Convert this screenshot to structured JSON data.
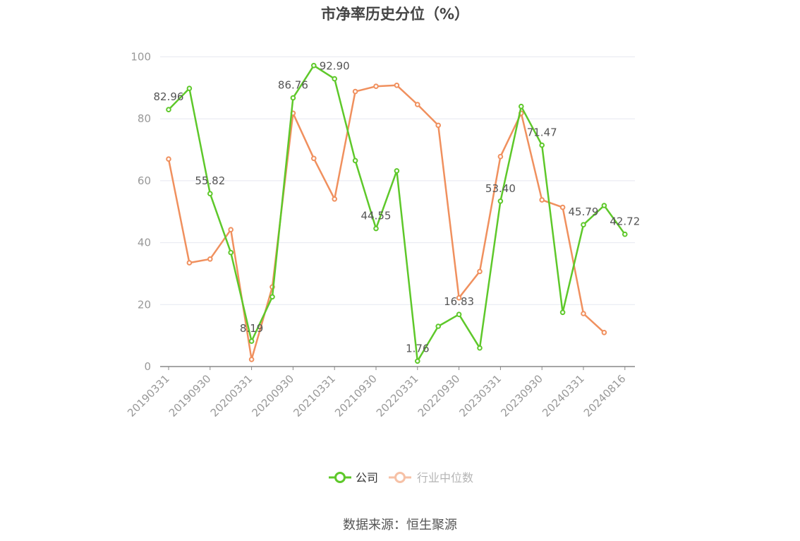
{
  "title": "市净率历史分位（%）",
  "source": "数据来源：恒生聚源",
  "colors": {
    "company": "#5ec82a",
    "industry": "#f0905e",
    "grid": "#e6e8f0",
    "axis": "#999999",
    "label": "#555555"
  },
  "chart_data": {
    "type": "line",
    "title": "市净率历史分位（%）",
    "xlabel": "",
    "ylabel": "",
    "ylim": [
      0,
      100
    ],
    "yticks": [
      0,
      20,
      40,
      60,
      80,
      100
    ],
    "grid": true,
    "legend_position": "bottom",
    "x": [
      "20190331",
      "20190630",
      "20190930",
      "20191231",
      "20200331",
      "20200630",
      "20200930",
      "20201231",
      "20210331",
      "20210630",
      "20210930",
      "20211231",
      "20220331",
      "20220630",
      "20220930",
      "20221231",
      "20230331",
      "20230630",
      "20230930",
      "20231231",
      "20240331",
      "20240630",
      "20240816"
    ],
    "xtick_labels": [
      "20190331",
      "20190930",
      "20200331",
      "20200930",
      "20210331",
      "20210930",
      "20220331",
      "20220930",
      "20230331",
      "20230930",
      "20240331",
      "20240816"
    ],
    "xtick_index": [
      0,
      2,
      4,
      6,
      8,
      10,
      12,
      14,
      16,
      18,
      20,
      22
    ],
    "series": [
      {
        "name": "公司",
        "color": "#5ec82a",
        "values": [
          82.96,
          89.8,
          55.82,
          36.8,
          8.19,
          22.5,
          86.76,
          97.2,
          92.9,
          66.5,
          44.55,
          63.2,
          1.76,
          13.0,
          16.83,
          6.0,
          53.4,
          84.0,
          71.47,
          17.5,
          45.79,
          52.0,
          42.72
        ],
        "labels": [
          "82.96",
          null,
          "55.82",
          null,
          "8.19",
          null,
          "86.76",
          null,
          "92.90",
          null,
          "44.55",
          null,
          "1.76",
          null,
          "16.83",
          null,
          "53.40",
          null,
          "71.47",
          null,
          "45.79",
          null,
          "42.72"
        ]
      },
      {
        "name": "行业中位数",
        "color": "#f0905e",
        "values": [
          67.0,
          33.5,
          34.7,
          44.2,
          2.3,
          25.7,
          81.8,
          67.2,
          54.1,
          88.8,
          90.5,
          90.8,
          84.6,
          77.9,
          22.2,
          30.7,
          67.8,
          81.8,
          53.8,
          51.4,
          17.1,
          11.0,
          null
        ]
      }
    ]
  }
}
